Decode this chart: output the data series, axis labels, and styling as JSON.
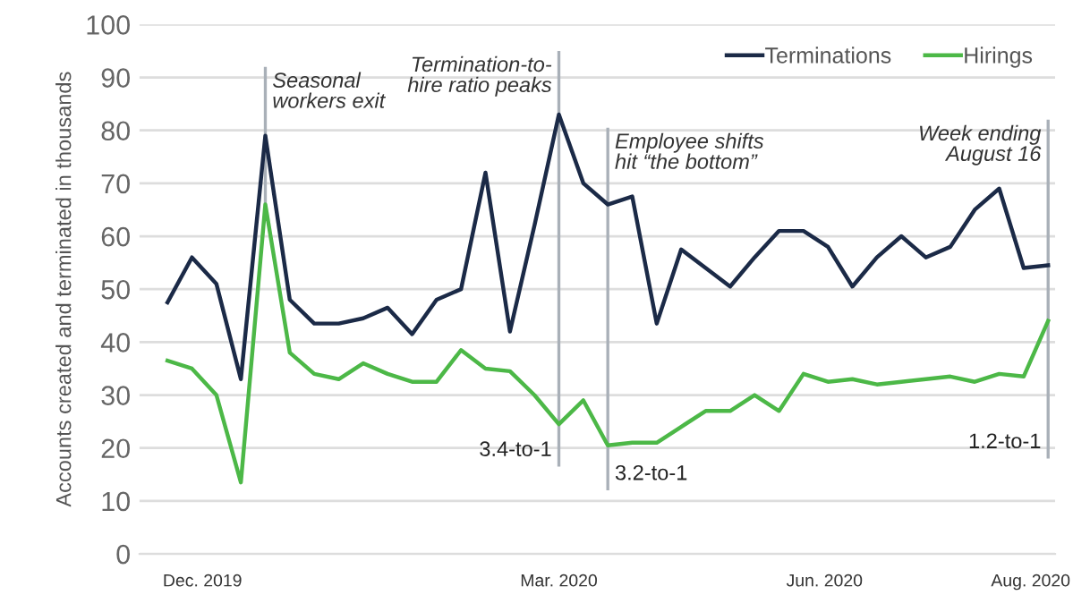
{
  "chart_data": {
    "type": "line",
    "ylabel": "Accounts created and terminated in thousands",
    "x": [
      "2019-12-08",
      "2019-12-15",
      "2019-12-22",
      "2019-12-29",
      "2020-01-05",
      "2020-01-12",
      "2020-01-19",
      "2020-01-26",
      "2020-02-02",
      "2020-02-09",
      "2020-02-16",
      "2020-02-23",
      "2020-03-01",
      "2020-03-08",
      "2020-03-15",
      "2020-03-22",
      "2020-03-29",
      "2020-04-05",
      "2020-04-12",
      "2020-04-19",
      "2020-04-26",
      "2020-05-03",
      "2020-05-10",
      "2020-05-17",
      "2020-05-24",
      "2020-05-31",
      "2020-06-07",
      "2020-06-14",
      "2020-06-21",
      "2020-06-28",
      "2020-07-05",
      "2020-07-12",
      "2020-07-19",
      "2020-07-26",
      "2020-08-02",
      "2020-08-09",
      "2020-08-16"
    ],
    "series": [
      {
        "name": "Terminations",
        "color": "#1b2a47",
        "values": [
          47.5,
          56,
          51,
          33,
          79,
          48,
          43.5,
          43.5,
          44.5,
          46.5,
          41.5,
          48,
          50,
          72,
          42,
          62,
          83,
          70,
          66,
          67.5,
          43.5,
          57.5,
          54,
          50.5,
          56,
          61,
          61,
          58,
          50.5,
          56,
          60,
          56,
          58,
          65,
          69,
          54,
          54.5
        ]
      },
      {
        "name": "Hirings",
        "color": "#4cb847",
        "values": [
          36.5,
          35,
          30,
          13.5,
          66,
          38,
          34,
          33,
          36,
          34,
          32.5,
          32.5,
          38.5,
          35,
          34.5,
          30,
          24.5,
          29,
          20.5,
          21,
          21,
          24,
          27,
          27,
          30,
          27,
          34,
          32.5,
          33,
          32,
          32.5,
          33,
          33.5,
          32.5,
          34,
          33.5,
          44
        ]
      }
    ],
    "xlim": [
      "2019-11-30",
      "2020-08-18"
    ],
    "xticks": [
      {
        "value": "2019-12-18",
        "label": "Dec. 2019"
      },
      {
        "value": "2020-03-29",
        "label": "Mar. 2020"
      },
      {
        "value": "2020-06-13",
        "label": "Jun. 2020"
      },
      {
        "value": "2020-08-11",
        "label": "Aug. 2020"
      }
    ],
    "ylim": [
      0,
      100
    ],
    "yticks": [
      0,
      10,
      20,
      30,
      40,
      50,
      60,
      70,
      80,
      90,
      100
    ],
    "grid": "y",
    "legend": "top right",
    "ref_lines": [
      {
        "axis": "x",
        "value": "2020-01-05",
        "label": "Seasonal\nworkers exit",
        "color": "#a9b0b8"
      },
      {
        "axis": "x",
        "value": "2020-03-29",
        "label": "Termination-to-\nhire ratio peaks",
        "color": "#a9b0b8"
      },
      {
        "axis": "x",
        "value": "2020-04-12",
        "label": "Employee shifts\nhit “the bottom”",
        "color": "#a9b0b8"
      },
      {
        "axis": "x",
        "value": "2020-08-16",
        "label": "Week ending\nAugust 16",
        "color": "#a9b0b8"
      }
    ],
    "annotations": [
      {
        "text": "3.4-to-1",
        "x": "2020-03-29",
        "y": 19.5
      },
      {
        "text": "3.2-to-1",
        "x": "2020-04-12",
        "y": 15
      },
      {
        "text": "1.2-to-1",
        "x": "2020-08-16",
        "y": 21
      }
    ]
  }
}
